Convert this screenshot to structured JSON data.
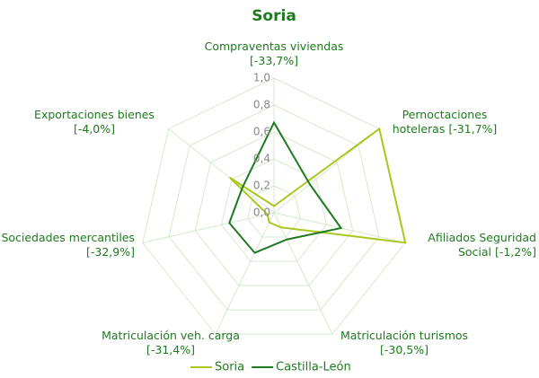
{
  "chart_data": {
    "type": "radar",
    "title": "Soria",
    "categories": [
      "Compraventas viviendas [-33,7%]",
      "Pernoctaciones hoteleras [-31,7%]",
      "Afiliados Seguridad Social [-1,2%]",
      "Matriculación turismos [-30,5%]",
      "Matriculación veh. carga [-31,4%]",
      "Sociedades mercantiles [-32,9%]",
      "Exportaciones bienes [-4,0%]"
    ],
    "series": [
      {
        "name": "Soria",
        "color": "#a8c81e",
        "values": [
          0.05,
          1.0,
          1.0,
          0.12,
          0.08,
          0.05,
          0.42
        ]
      },
      {
        "name": "Castilla-León",
        "color": "#1e7a1e",
        "values": [
          0.67,
          0.34,
          0.51,
          0.22,
          0.33,
          0.34,
          0.3
        ]
      }
    ],
    "ylim": [
      0,
      1.0
    ],
    "yticks": [
      {
        "value": 0,
        "label": "0,0"
      },
      {
        "value": 0.2,
        "label": "0,2"
      },
      {
        "value": 0.4,
        "label": "0,4"
      },
      {
        "value": 0.6,
        "label": "0,6"
      },
      {
        "value": 0.8,
        "label": "0,8"
      },
      {
        "value": 1.0,
        "label": "1,0"
      }
    ],
    "grid": true,
    "legend": "bottom"
  }
}
